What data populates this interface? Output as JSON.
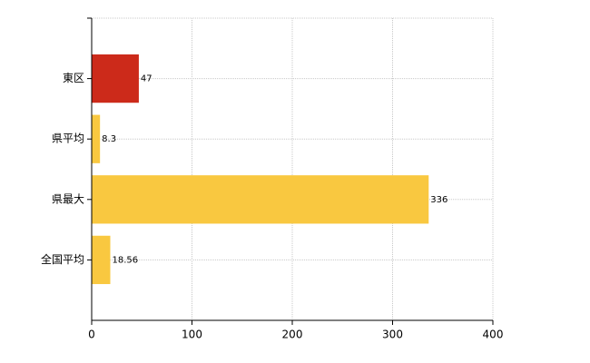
{
  "chart_data": {
    "type": "bar",
    "orientation": "horizontal",
    "categories": [
      "東区",
      "県平均",
      "県最大",
      "全国平均"
    ],
    "values": [
      47,
      8.3,
      336,
      18.56
    ],
    "colors": [
      "#cc2a1a",
      "#f9c840",
      "#f9c840",
      "#f9c840"
    ],
    "xlim": [
      0,
      400
    ],
    "xticks": [
      0,
      100,
      200,
      300,
      400
    ],
    "grid": true
  }
}
